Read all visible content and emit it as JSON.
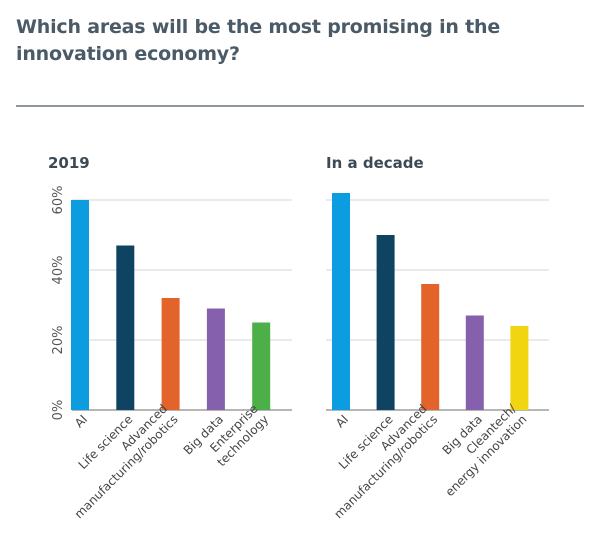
{
  "title": "Which areas will be the most promising in the innovation economy?",
  "chart_data": [
    {
      "type": "bar",
      "title": "2019",
      "categories": [
        "AI",
        "Life science",
        "Advanced manufacturing/robotics",
        "Big data",
        "Enterprise technology"
      ],
      "category_lines": [
        [
          "AI"
        ],
        [
          "Life science"
        ],
        [
          "Advanced",
          "manufacturing/robotics"
        ],
        [
          "Big data"
        ],
        [
          "Enterprise",
          "technology"
        ]
      ],
      "values": [
        60,
        47,
        32,
        29,
        25
      ],
      "colors": [
        "#0b9de0",
        "#0e4462",
        "#e2642b",
        "#8560ad",
        "#4caf48"
      ],
      "yticks": [
        "0%",
        "20%",
        "40%",
        "60%"
      ],
      "ylim": [
        0,
        60
      ],
      "grid": true
    },
    {
      "type": "bar",
      "title": "In a decade",
      "categories": [
        "AI",
        "Life science",
        "Advanced manufacturing/robotics",
        "Big data",
        "Cleantech/energy innovation"
      ],
      "category_lines": [
        [
          "AI"
        ],
        [
          "Life science"
        ],
        [
          "Advanced",
          "manufacturing/robotics"
        ],
        [
          "Big data"
        ],
        [
          "Cleantech/",
          "energy innovation"
        ]
      ],
      "values": [
        62,
        50,
        36,
        27,
        24
      ],
      "colors": [
        "#0b9de0",
        "#0e4462",
        "#e2642b",
        "#8560ad",
        "#f0d510"
      ],
      "ylim": [
        0,
        60
      ],
      "grid": true
    }
  ]
}
